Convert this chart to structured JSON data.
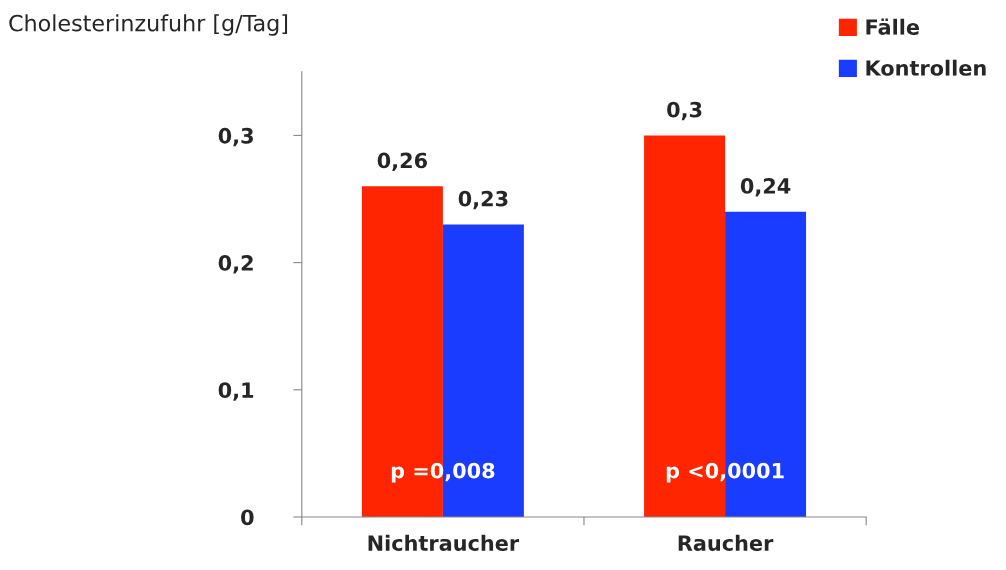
{
  "chart_data": {
    "type": "bar",
    "ylabel": "Cholesterinzufuhr [g/Tag]",
    "categories": [
      "Nichtraucher",
      "Raucher"
    ],
    "series": [
      {
        "name": "Fälle",
        "color": "#ff2500",
        "values": [
          0.26,
          0.3
        ],
        "value_labels": [
          "0,26",
          "0,3"
        ]
      },
      {
        "name": "Kontrollen",
        "color": "#1a3cff",
        "values": [
          0.23,
          0.24
        ],
        "value_labels": [
          "0,23",
          "0,24"
        ]
      }
    ],
    "ylim": [
      0,
      0.35
    ],
    "yticks": [
      {
        "value": 0,
        "label": "0"
      },
      {
        "value": 0.1,
        "label": "0,1"
      },
      {
        "value": 0.2,
        "label": "0,2"
      },
      {
        "value": 0.3,
        "label": "0,3"
      }
    ],
    "grid": false,
    "legend": "top right",
    "annotations": [
      {
        "text": "p =0,008",
        "x": "Nichtraucher",
        "y": 0.035
      },
      {
        "text": "p <0,0001",
        "x": "Raucher",
        "y": 0.035
      }
    ]
  }
}
